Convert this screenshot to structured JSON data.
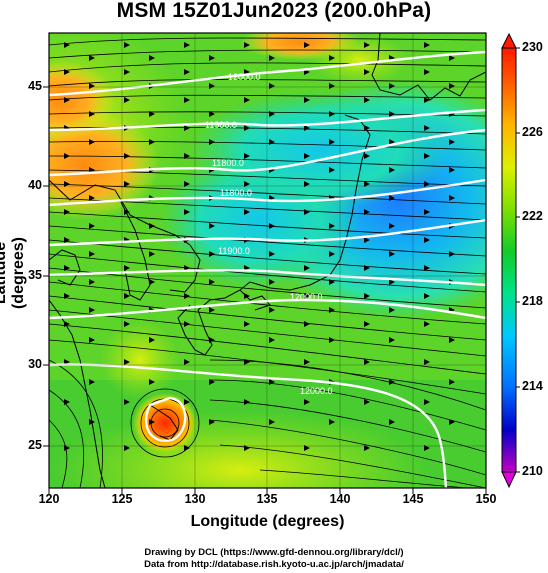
{
  "title": "MSM 15Z01Jun2023 (200.0hPa)",
  "axes": {
    "xlabel": "Longitude (degrees)",
    "ylabel": "Latitude  (degrees)",
    "xticks": [
      "120",
      "125",
      "130",
      "135",
      "140",
      "145",
      "150"
    ],
    "yticks": [
      "45",
      "40",
      "35",
      "30",
      "25"
    ]
  },
  "colorbar": {
    "ticks": [
      "230",
      "226",
      "222",
      "218",
      "214",
      "210"
    ],
    "min": 210,
    "max": 230,
    "colors": [
      "#c400c4",
      "#0000c8",
      "#0070ff",
      "#00c8ff",
      "#00e28c",
      "#12cc2a",
      "#7ee000",
      "#dcf000",
      "#ffb400",
      "#ff5a00",
      "#ff1a00"
    ]
  },
  "contour_labels": [
    "12000.0",
    "11900.0",
    "11800.0",
    "11800.0",
    "11900.0",
    "12000.0",
    "12000.0"
  ],
  "credits": {
    "line1": "Drawing by DCL (https://www.gfd-dennou.org/library/dcl/)",
    "line2": "Data from http://database.rish.kyoto-u.ac.jp/arch/jmadata/"
  }
}
